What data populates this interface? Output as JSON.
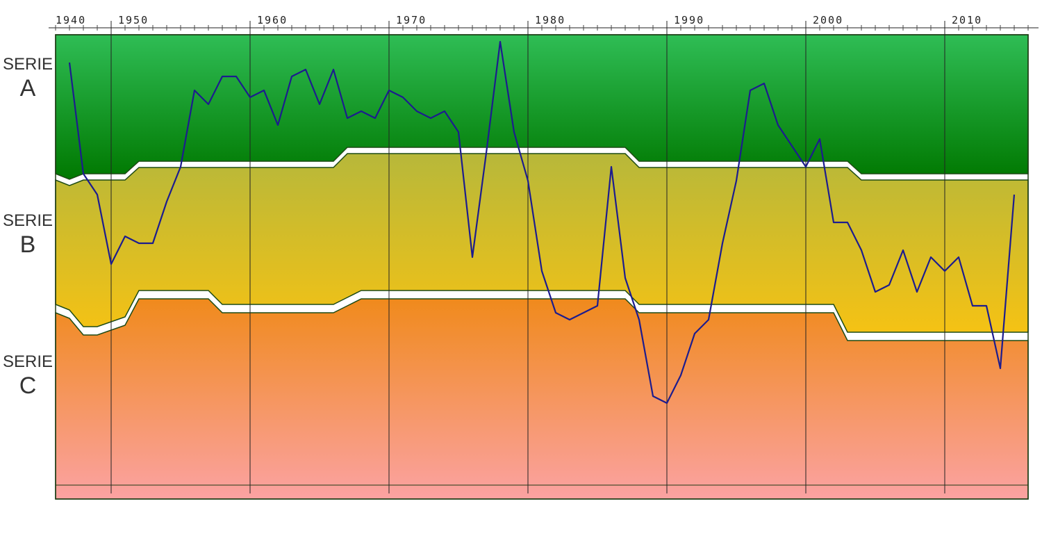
{
  "chart_data": {
    "type": "band-line",
    "series_label": "SERIE",
    "xlim": [
      1946,
      2016
    ],
    "ylim": [
      0,
      66.8
    ],
    "xticks": [
      1940,
      1950,
      1960,
      1970,
      1980,
      1990,
      2000,
      2010
    ],
    "grid": true,
    "bands": {
      "x": [
        1946,
        1947,
        1948,
        1949,
        1951,
        1952,
        1957,
        1958,
        1966,
        1967,
        1968,
        1987,
        1988,
        2002,
        2003,
        2004,
        2016
      ],
      "series": [
        {
          "name": "A",
          "colors": [
            "#2fbd55",
            "#007800"
          ],
          "values": [
            46.8,
            46,
            46.8,
            46.8,
            46.8,
            48.6,
            48.6,
            48.6,
            48.6,
            50.6,
            50.6,
            50.6,
            48.6,
            48.6,
            48.6,
            46.8,
            46.8
          ]
        },
        {
          "name": "B",
          "colors": [
            "#b7b83a",
            "#f5c214"
          ],
          "values": [
            28,
            27.2,
            24.8,
            24.8,
            26.2,
            30,
            30,
            28,
            28,
            29,
            30,
            30,
            28,
            28,
            24,
            24,
            24
          ]
        },
        {
          "name": "C",
          "colors": [
            "#f08a1c",
            "#fba2a2"
          ],
          "values": [
            0,
            0,
            0,
            0,
            0,
            0,
            0,
            0,
            0,
            0,
            0,
            0,
            0,
            0,
            0,
            0,
            0
          ]
        }
      ]
    },
    "line": {
      "color": "#1c1c8e",
      "x": [
        1947,
        1948,
        1949,
        1950,
        1951,
        1952,
        1953,
        1954,
        1955,
        1956,
        1957,
        1958,
        1959,
        1960,
        1961,
        1962,
        1963,
        1964,
        1965,
        1966,
        1967,
        1968,
        1969,
        1970,
        1971,
        1972,
        1973,
        1974,
        1975,
        1976,
        1977,
        1978,
        1979,
        1980,
        1981,
        1982,
        1983,
        1984,
        1985,
        1986,
        1987,
        1988,
        1989,
        1990,
        1991,
        1992,
        1993,
        1994,
        1995,
        1996,
        1997,
        1998,
        1999,
        2000,
        2001,
        2002,
        2003,
        2004,
        2005,
        2006,
        2007,
        2008,
        2009,
        2010,
        2011,
        2012,
        2013,
        2014,
        2015
      ],
      "values": [
        62.8,
        46.8,
        43.8,
        33.8,
        37.8,
        36.8,
        36.8,
        42.8,
        47.8,
        58.8,
        56.8,
        60.8,
        60.8,
        57.8,
        58.8,
        53.8,
        60.8,
        61.8,
        56.8,
        61.8,
        54.8,
        55.8,
        54.8,
        58.8,
        57.8,
        55.8,
        54.8,
        55.8,
        52.8,
        34.8,
        49.8,
        65.8,
        52.8,
        45.8,
        32.8,
        26.8,
        25.8,
        26.8,
        27.8,
        47.8,
        31.8,
        25.8,
        14.8,
        13.8,
        17.8,
        23.8,
        25.8,
        36.8,
        45.8,
        58.8,
        59.8,
        53.8,
        50.8,
        47.8,
        51.8,
        39.8,
        39.8,
        35.8,
        29.8,
        30.8,
        35.8,
        29.8,
        34.8,
        32.8,
        34.8,
        27.8,
        27.8,
        18.8,
        43.8
      ]
    }
  }
}
